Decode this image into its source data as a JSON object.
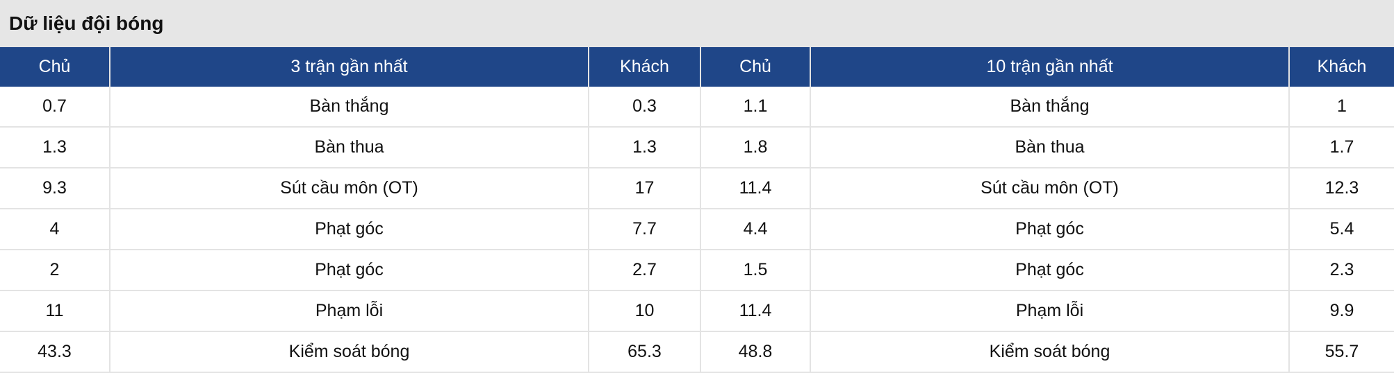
{
  "title": "Dữ liệu đội bóng",
  "headers": [
    "Chủ",
    "3 trận gần nhất",
    "Khách",
    "Chủ",
    "10 trận gần nhất",
    "Khách"
  ],
  "rows": [
    [
      "0.7",
      "Bàn thắng",
      "0.3",
      "1.1",
      "Bàn thắng",
      "1"
    ],
    [
      "1.3",
      "Bàn thua",
      "1.3",
      "1.8",
      "Bàn thua",
      "1.7"
    ],
    [
      "9.3",
      "Sút cầu môn (OT)",
      "17",
      "11.4",
      "Sút cầu môn (OT)",
      "12.3"
    ],
    [
      "4",
      "Phạt góc",
      "7.7",
      "4.4",
      "Phạt góc",
      "5.4"
    ],
    [
      "2",
      "Phạt góc",
      "2.7",
      "1.5",
      "Phạt góc",
      "2.3"
    ],
    [
      "11",
      "Phạm lỗi",
      "10",
      "11.4",
      "Phạm lỗi",
      "9.9"
    ],
    [
      "43.3",
      "Kiểm soát bóng",
      "65.3",
      "48.8",
      "Kiểm soát bóng",
      "55.7"
    ]
  ],
  "colors": {
    "header_bg": "#1f4688",
    "title_bg": "#e6e6e6"
  }
}
